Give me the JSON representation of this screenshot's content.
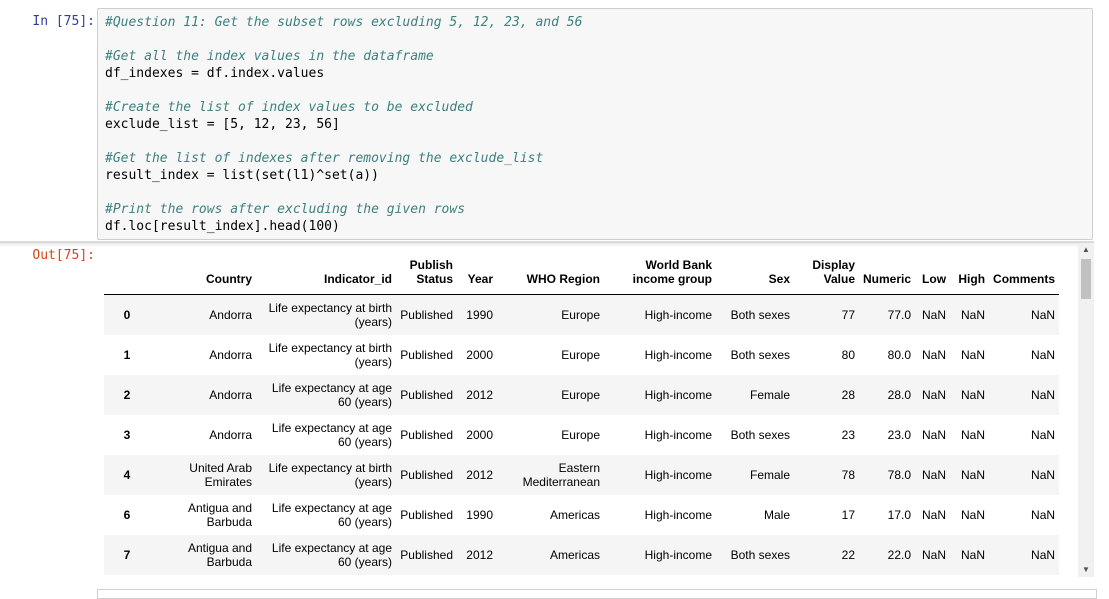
{
  "input_prompt": "In [75]:",
  "output_prompt": "Out[75]:",
  "code": {
    "line1": "#Question 11: Get the subset rows excluding 5, 12, 23, and 56",
    "line2": "#Get all the index values in the dataframe",
    "line3": "df_indexes = df.index.values",
    "line4": "#Create the list of index values to be excluded",
    "line5": "exclude_list = [5, 12, 23, 56]",
    "line6": "#Get the list of indexes after removing the exclude_list",
    "line7": "result_index = list(set(l1)^set(a))",
    "line8": "#Print the rows after excluding the given rows",
    "line9": "df.loc[result_index].head(100)"
  },
  "table": {
    "headers": {
      "index": "",
      "country": "Country",
      "indicator": "Indicator_id",
      "publish": "Publish Status",
      "year": "Year",
      "region": "WHO Region",
      "income": "World Bank income group",
      "sex": "Sex",
      "display": "Display Value",
      "numeric": "Numeric",
      "low": "Low",
      "high": "High",
      "comments": "Comments"
    },
    "rows": [
      {
        "index": "0",
        "country": "Andorra",
        "indicator": "Life expectancy at birth (years)",
        "publish": "Published",
        "year": "1990",
        "region": "Europe",
        "income": "High-income",
        "sex": "Both sexes",
        "display": "77",
        "numeric": "77.0",
        "low": "NaN",
        "high": "NaN",
        "comments": "NaN"
      },
      {
        "index": "1",
        "country": "Andorra",
        "indicator": "Life expectancy at birth (years)",
        "publish": "Published",
        "year": "2000",
        "region": "Europe",
        "income": "High-income",
        "sex": "Both sexes",
        "display": "80",
        "numeric": "80.0",
        "low": "NaN",
        "high": "NaN",
        "comments": "NaN"
      },
      {
        "index": "2",
        "country": "Andorra",
        "indicator": "Life expectancy at age 60 (years)",
        "publish": "Published",
        "year": "2012",
        "region": "Europe",
        "income": "High-income",
        "sex": "Female",
        "display": "28",
        "numeric": "28.0",
        "low": "NaN",
        "high": "NaN",
        "comments": "NaN"
      },
      {
        "index": "3",
        "country": "Andorra",
        "indicator": "Life expectancy at age 60 (years)",
        "publish": "Published",
        "year": "2000",
        "region": "Europe",
        "income": "High-income",
        "sex": "Both sexes",
        "display": "23",
        "numeric": "23.0",
        "low": "NaN",
        "high": "NaN",
        "comments": "NaN"
      },
      {
        "index": "4",
        "country": "United Arab Emirates",
        "indicator": "Life expectancy at birth (years)",
        "publish": "Published",
        "year": "2012",
        "region": "Eastern Mediterranean",
        "income": "High-income",
        "sex": "Female",
        "display": "78",
        "numeric": "78.0",
        "low": "NaN",
        "high": "NaN",
        "comments": "NaN"
      },
      {
        "index": "6",
        "country": "Antigua and Barbuda",
        "indicator": "Life expectancy at age 60 (years)",
        "publish": "Published",
        "year": "1990",
        "region": "Americas",
        "income": "High-income",
        "sex": "Male",
        "display": "17",
        "numeric": "17.0",
        "low": "NaN",
        "high": "NaN",
        "comments": "NaN"
      },
      {
        "index": "7",
        "country": "Antigua and Barbuda",
        "indicator": "Life expectancy at age 60 (years)",
        "publish": "Published",
        "year": "2012",
        "region": "Americas",
        "income": "High-income",
        "sex": "Both sexes",
        "display": "22",
        "numeric": "22.0",
        "low": "NaN",
        "high": "NaN",
        "comments": "NaN"
      }
    ]
  }
}
